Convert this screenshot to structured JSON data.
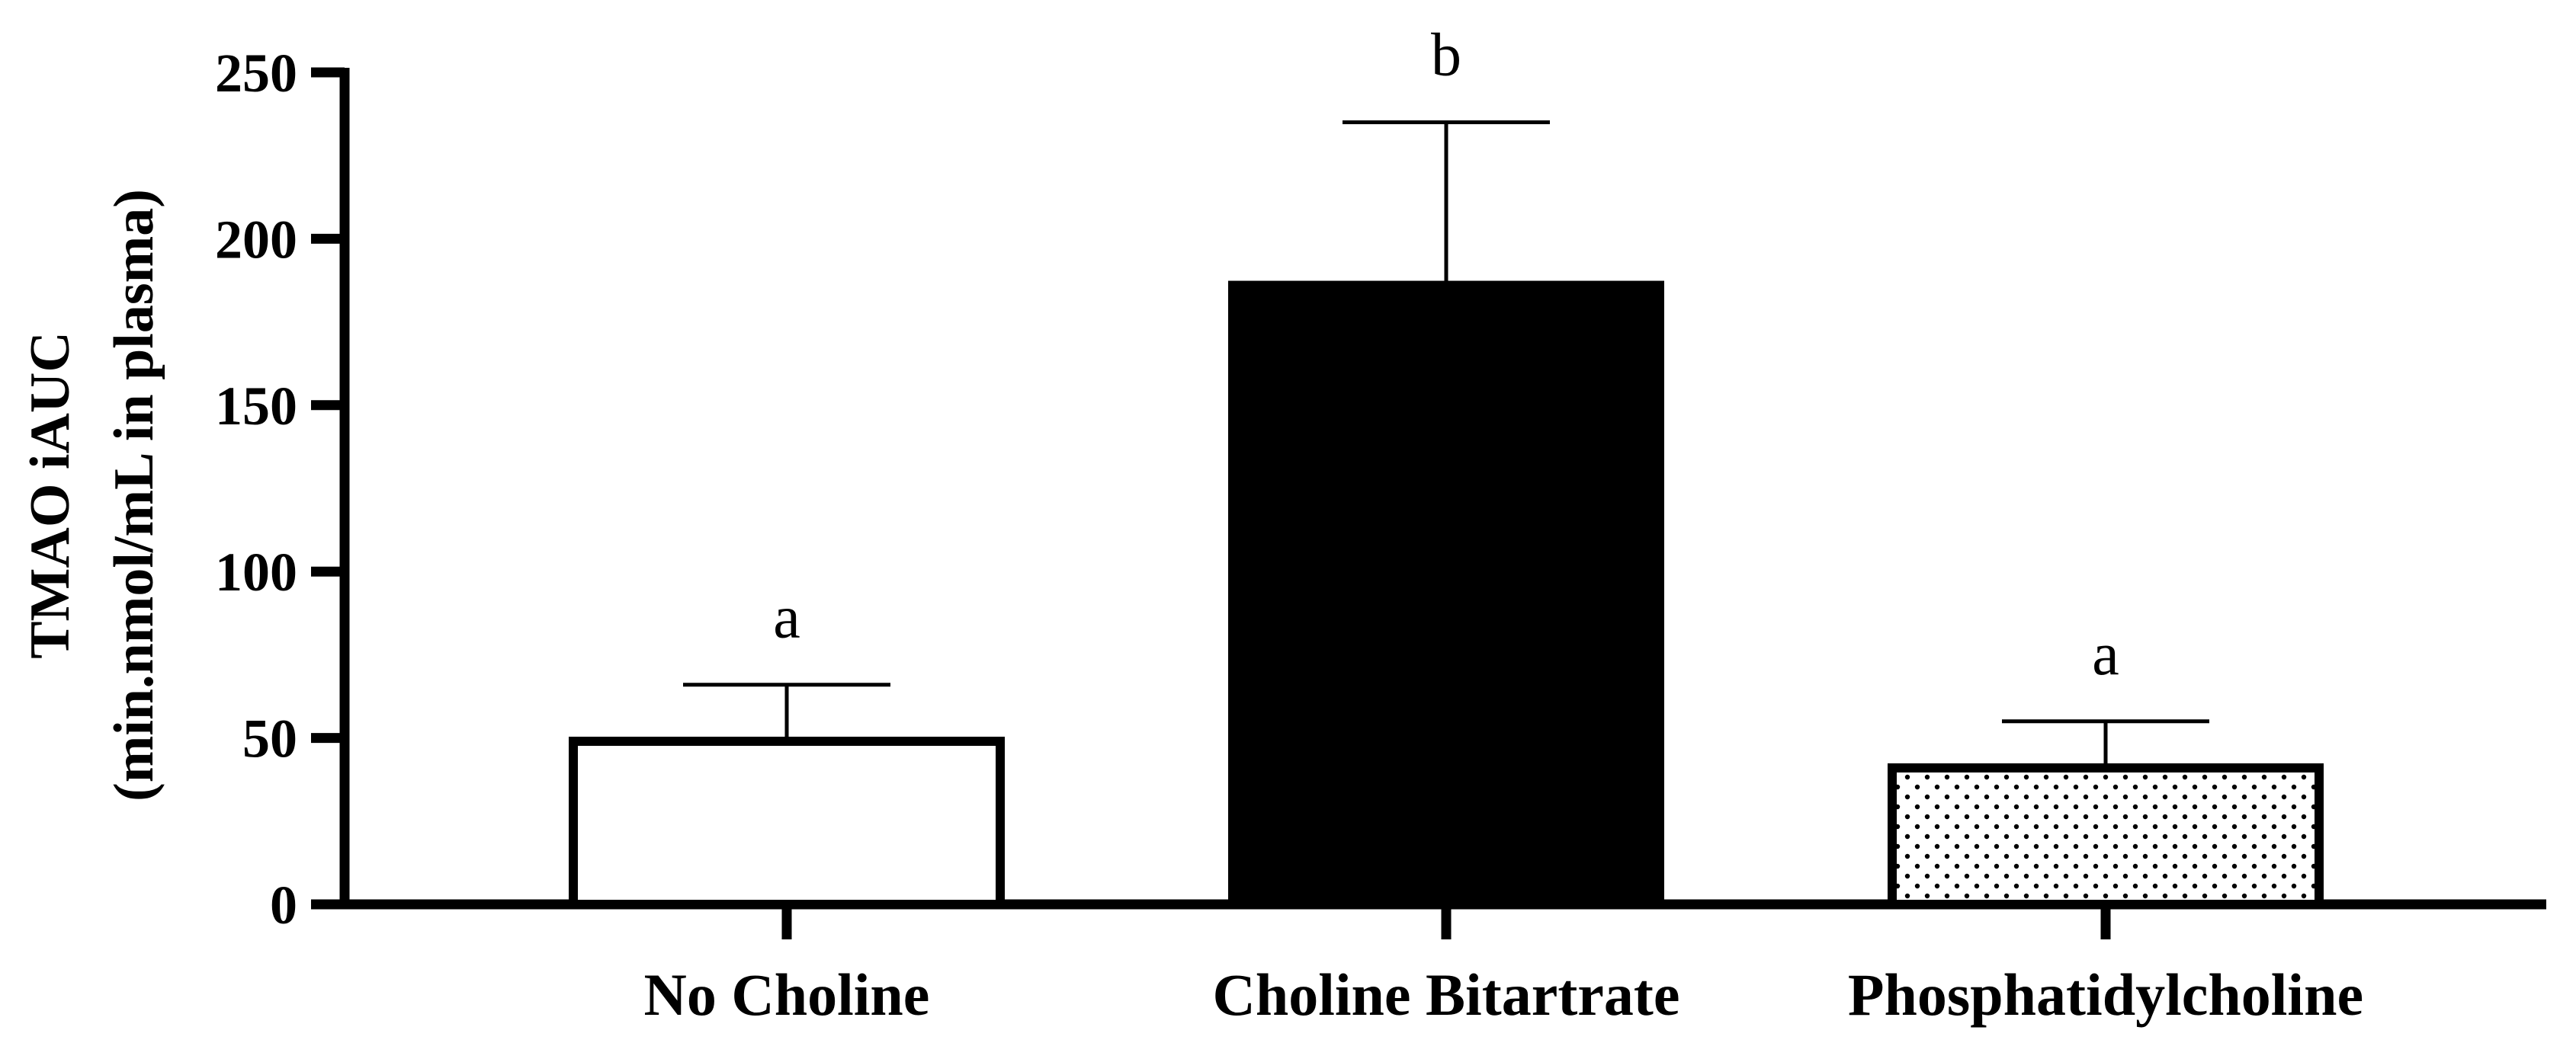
{
  "chart_data": {
    "type": "bar",
    "title": "",
    "xlabel": "",
    "ylabel_lines": [
      "TMAO iAUC",
      "(min.nmol/mL in plasma)"
    ],
    "ylim": [
      0,
      250
    ],
    "yticks": [
      0,
      50,
      100,
      150,
      200,
      250
    ],
    "categories": [
      "No Choline",
      "Choline Bitartrate",
      "Phosphatidylcholine"
    ],
    "values": [
      49,
      186,
      41
    ],
    "error_upper": [
      17,
      49,
      14
    ],
    "significance_letters": [
      "a",
      "b",
      "a"
    ],
    "bar_fills": [
      "white",
      "black",
      "dotted"
    ],
    "colors": {
      "axis": "#000000",
      "bar_edge": "#000000",
      "bar_black": "#000000",
      "bar_white": "#ffffff"
    },
    "grid": false,
    "legend": "none"
  }
}
